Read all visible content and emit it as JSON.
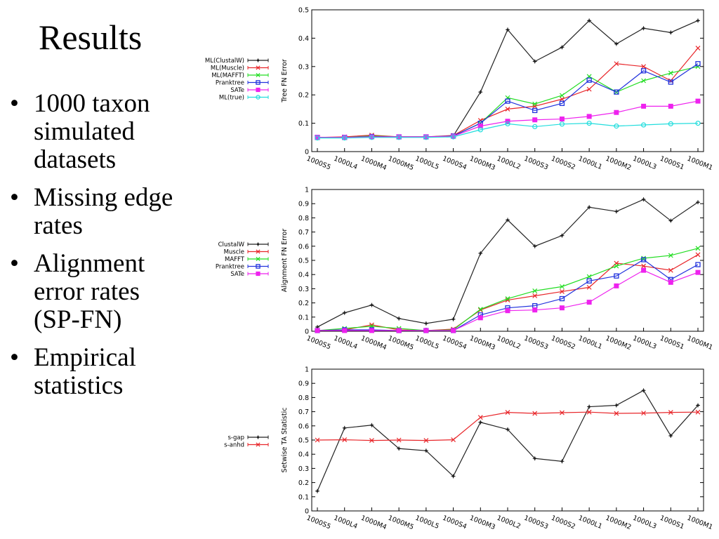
{
  "slide": {
    "title": "Results",
    "bullets": [
      "1000 taxon simulated datasets",
      "Missing edge rates",
      "Alignment error rates (SP-FN)",
      "Empirical statistics"
    ]
  },
  "chart_data": [
    {
      "type": "line",
      "ylabel": "Tree FN Error",
      "ylim": [
        0,
        0.5
      ],
      "yticks": [
        "0",
        "0.1",
        "0.2",
        "0.3",
        "0.4",
        "0.5"
      ],
      "categories": [
        "1000S5",
        "1000L4",
        "1000M4",
        "1000M5",
        "1000L5",
        "1000S4",
        "1000M3",
        "1000L2",
        "1000S3",
        "1000S2",
        "1000L1",
        "1000M2",
        "1000L3",
        "1000S1",
        "1000M1"
      ],
      "legend_position": "left",
      "series": [
        {
          "name": "ML(ClustalW)",
          "color": "#222222",
          "marker": "plus",
          "values": [
            0.05,
            0.05,
            0.055,
            0.052,
            0.052,
            0.055,
            0.21,
            0.43,
            0.318,
            0.368,
            0.462,
            0.38,
            0.435,
            0.42,
            0.462
          ]
        },
        {
          "name": "ML(Muscle)",
          "color": "#e8262a",
          "marker": "x",
          "values": [
            0.05,
            0.052,
            0.058,
            0.052,
            0.052,
            0.057,
            0.11,
            0.15,
            0.16,
            0.185,
            0.22,
            0.31,
            0.3,
            0.25,
            0.365
          ]
        },
        {
          "name": "ML(MAFFT)",
          "color": "#22dd22",
          "marker": "x",
          "values": [
            0.05,
            0.05,
            0.055,
            0.052,
            0.052,
            0.055,
            0.1,
            0.19,
            0.168,
            0.198,
            0.265,
            0.21,
            0.25,
            0.277,
            0.3
          ]
        },
        {
          "name": "Pranktree",
          "color": "#2233dd",
          "marker": "square",
          "values": [
            0.05,
            0.05,
            0.053,
            0.052,
            0.052,
            0.055,
            0.1,
            0.178,
            0.145,
            0.17,
            0.252,
            0.21,
            0.285,
            0.245,
            0.31
          ]
        },
        {
          "name": "SATe",
          "color": "#ee22ee",
          "marker": "square-filled",
          "values": [
            0.05,
            0.05,
            0.052,
            0.052,
            0.052,
            0.054,
            0.09,
            0.107,
            0.112,
            0.115,
            0.124,
            0.138,
            0.16,
            0.16,
            0.178
          ]
        },
        {
          "name": "ML(true)",
          "color": "#22dddd",
          "marker": "circle",
          "values": [
            0.048,
            0.048,
            0.05,
            0.05,
            0.05,
            0.052,
            0.077,
            0.098,
            0.088,
            0.097,
            0.1,
            0.09,
            0.094,
            0.098,
            0.1
          ]
        }
      ]
    },
    {
      "type": "line",
      "ylabel": "Alignment FN Error",
      "ylim": [
        0,
        1
      ],
      "yticks": [
        "0",
        "0.1",
        "0.2",
        "0.3",
        "0.4",
        "0.5",
        "0.6",
        "0.7",
        "0.8",
        "0.9",
        "1"
      ],
      "categories": [
        "1000S5",
        "1000L4",
        "1000M4",
        "1000M5",
        "1000L5",
        "1000S4",
        "1000M3",
        "1000L2",
        "1000S3",
        "1000S2",
        "1000L1",
        "1000M2",
        "1000L3",
        "1000S1",
        "1000M1"
      ],
      "legend_position": "left",
      "series": [
        {
          "name": "ClustalW",
          "color": "#222222",
          "marker": "plus",
          "values": [
            0.03,
            0.13,
            0.185,
            0.09,
            0.055,
            0.085,
            0.55,
            0.785,
            0.6,
            0.675,
            0.875,
            0.845,
            0.93,
            0.78,
            0.91
          ]
        },
        {
          "name": "Muscle",
          "color": "#e8262a",
          "marker": "x",
          "values": [
            0.005,
            0.01,
            0.045,
            0.01,
            0.005,
            0.015,
            0.15,
            0.22,
            0.25,
            0.28,
            0.31,
            0.48,
            0.46,
            0.43,
            0.54
          ]
        },
        {
          "name": "MAFFT",
          "color": "#22dd22",
          "marker": "x",
          "values": [
            0.005,
            0.02,
            0.035,
            0.02,
            0.005,
            0.01,
            0.155,
            0.23,
            0.285,
            0.315,
            0.385,
            0.46,
            0.515,
            0.535,
            0.585
          ]
        },
        {
          "name": "Pranktree",
          "color": "#2233dd",
          "marker": "square",
          "values": [
            0.005,
            0.01,
            0.01,
            0.005,
            0.005,
            0.005,
            0.115,
            0.165,
            0.18,
            0.23,
            0.355,
            0.39,
            0.505,
            0.365,
            0.47
          ]
        },
        {
          "name": "SATe",
          "color": "#ee22ee",
          "marker": "square-filled",
          "values": [
            0.005,
            0.005,
            0.005,
            0.005,
            0.005,
            0.005,
            0.095,
            0.145,
            0.15,
            0.165,
            0.205,
            0.32,
            0.43,
            0.345,
            0.415
          ]
        }
      ]
    },
    {
      "type": "line",
      "ylabel": "Setwise TA Statistic",
      "ylim": [
        0,
        1
      ],
      "yticks": [
        "0",
        "0.1",
        "0.2",
        "0.3",
        "0.4",
        "0.5",
        "0.6",
        "0.7",
        "0.8",
        "0.9",
        "1"
      ],
      "categories": [
        "1000S5",
        "1000L4",
        "1000M4",
        "1000M5",
        "1000L5",
        "1000S4",
        "1000M3",
        "1000L2",
        "1000S3",
        "1000S2",
        "1000L1",
        "1000M2",
        "1000L3",
        "1000S1",
        "1000M1"
      ],
      "legend_position": "left",
      "series": [
        {
          "name": "s-gap",
          "color": "#222222",
          "marker": "plus",
          "values": [
            0.14,
            0.585,
            0.605,
            0.44,
            0.425,
            0.245,
            0.625,
            0.575,
            0.37,
            0.35,
            0.735,
            0.745,
            0.85,
            0.53,
            0.745
          ]
        },
        {
          "name": "s-anhd",
          "color": "#e8262a",
          "marker": "x",
          "values": [
            0.5,
            0.502,
            0.497,
            0.5,
            0.497,
            0.502,
            0.66,
            0.695,
            0.688,
            0.693,
            0.697,
            0.688,
            0.69,
            0.695,
            0.697
          ]
        }
      ]
    }
  ]
}
